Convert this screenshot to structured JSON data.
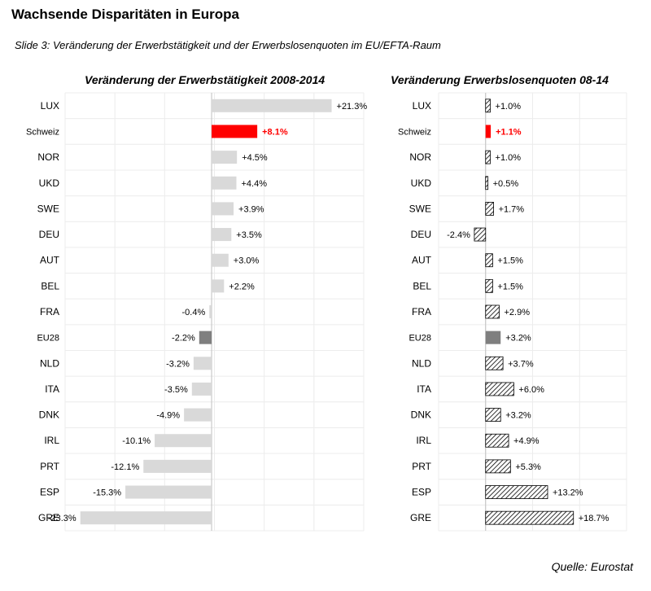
{
  "header": {
    "title": "Wachsende Disparitäten in Europa",
    "subtitle": "Slide 3: Veränderung der Erwerbstätigkeit und der Erwerbslosenquoten im EU/EFTA-Raum"
  },
  "footer": {
    "source": "Quelle: Eurostat"
  },
  "colors": {
    "default_bar": "#d9d9d9",
    "highlight": "#ff0000",
    "eu28": "#7f7f7f",
    "highlight_text": "#ff0000"
  },
  "chart_data": [
    {
      "type": "bar",
      "orientation": "horizontal",
      "title": "Veränderung der Erwerbstätigkeit 2008-2014",
      "categories": [
        "LUX",
        "Schweiz",
        "NOR",
        "UKD",
        "SWE",
        "DEU",
        "AUT",
        "BEL",
        "FRA",
        "EU28",
        "NLD",
        "ITA",
        "DNK",
        "IRL",
        "PRT",
        "ESP",
        "GRE"
      ],
      "values": [
        21.3,
        8.1,
        4.5,
        4.4,
        3.9,
        3.5,
        3.0,
        2.2,
        -0.4,
        -2.2,
        -3.2,
        -3.5,
        -4.9,
        -10.1,
        -12.1,
        -15.3,
        -23.3
      ],
      "labels": [
        "+21.3%",
        "+8.1%",
        "+4.5%",
        "+4.4%",
        "+3.9%",
        "+3.5%",
        "+3.0%",
        "+2.2%",
        "-0.4%",
        "-2.2%",
        "-3.2%",
        "-3.5%",
        "-4.9%",
        "-10.1%",
        "-12.1%",
        "-15.3%",
        "-23.3%"
      ],
      "highlight": {
        "Schweiz": "highlight",
        "EU28": "eu28"
      },
      "fill": "solid",
      "xlim": [
        -26,
        27
      ],
      "grid": true
    },
    {
      "type": "bar",
      "orientation": "horizontal",
      "title": "Veränderung Erwerbslosenquoten 08-14",
      "categories": [
        "LUX",
        "Schweiz",
        "NOR",
        "UKD",
        "SWE",
        "DEU",
        "AUT",
        "BEL",
        "FRA",
        "EU28",
        "NLD",
        "ITA",
        "DNK",
        "IRL",
        "PRT",
        "ESP",
        "GRE"
      ],
      "values": [
        1.0,
        1.1,
        1.0,
        0.5,
        1.7,
        -2.4,
        1.5,
        1.5,
        2.9,
        3.2,
        3.7,
        6.0,
        3.2,
        4.9,
        5.3,
        13.2,
        18.7
      ],
      "labels": [
        "+1.0%",
        "+1.1%",
        "+1.0%",
        "+0.5%",
        "+1.7%",
        "-2.4%",
        "+1.5%",
        "+1.5%",
        "+2.9%",
        "+3.2%",
        "+3.7%",
        "+6.0%",
        "+3.2%",
        "+4.9%",
        "+5.3%",
        "+13.2%",
        "+18.7%"
      ],
      "highlight": {
        "Schweiz": "highlight",
        "EU28": "eu28"
      },
      "fill": "hatched",
      "xlim": [
        -10,
        30
      ],
      "grid": true
    }
  ]
}
